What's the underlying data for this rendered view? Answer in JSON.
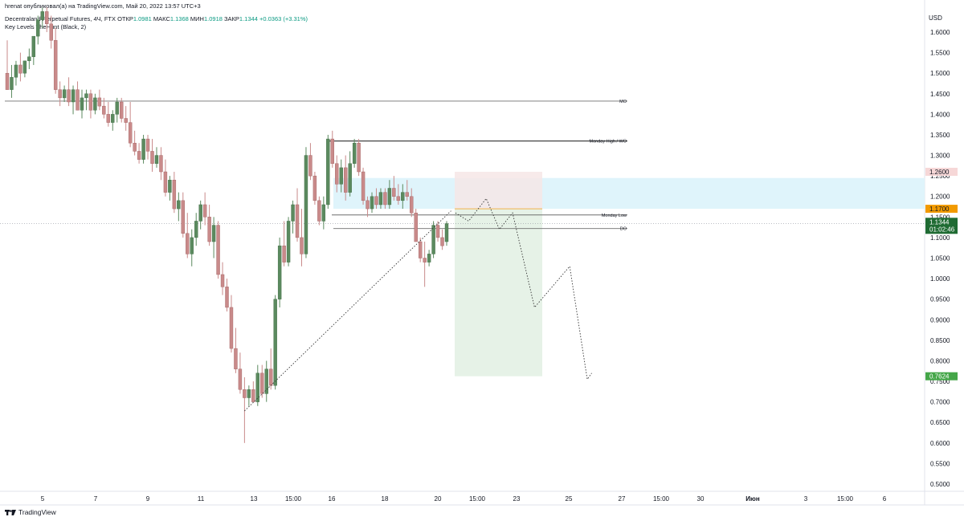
{
  "header": {
    "publisher_line": "hrenat опубликовал(а) на TradingView.com, Май 20, 2022 13:57 UTC+3",
    "symbol_line": "Decentraland Perpetual Futures, 4Ч, FTX",
    "ohlc": [
      {
        "key": "ОТКР",
        "value": "1.0981"
      },
      {
        "key": "МАКС",
        "value": "1.1368"
      },
      {
        "key": "МИН",
        "value": "1.0918"
      },
      {
        "key": "ЗАКР",
        "value": "1.1344"
      }
    ],
    "change": "+0.0363 (+3.31%)",
    "indicator": "Key Levels TheHunt (Black, 2)"
  },
  "footer": {
    "brand": "TradingView"
  },
  "colors": {
    "up": "#5b8a5f",
    "down": "#c98a8a",
    "level": "#6f6f6f",
    "zone": "#dff4fb",
    "stop": "#f6e6e6",
    "target": "#e6f2e7",
    "price_tag": "#1f6b33",
    "resistance_tag": "#f6d7d7",
    "entry_tag": "#f29a00",
    "target_tag": "#44a648"
  },
  "chart_data": {
    "type": "candlestick",
    "currency": "USD",
    "ylim": [
      0.48,
      1.65
    ],
    "y_ticks": [
      "0.5000",
      "0.5500",
      "0.6000",
      "0.6500",
      "0.7000",
      "0.7500",
      "0.8000",
      "0.8500",
      "0.9000",
      "0.9500",
      "1.0000",
      "1.0500",
      "1.1000",
      "1.1500",
      "1.2000",
      "1.2500",
      "1.3000",
      "1.3500",
      "1.4000",
      "1.4500",
      "1.5000",
      "1.5500",
      "1.6000"
    ],
    "x_ticks": [
      "5",
      "7",
      "9",
      "11",
      "13",
      "15:00",
      "16",
      "18",
      "20",
      "15:00",
      "23",
      "25",
      "27",
      "15:00",
      "30",
      "Июн",
      "3",
      "15:00",
      "6"
    ],
    "candles": [
      [
        1.5,
        1.58,
        1.46,
        1.46
      ],
      [
        1.46,
        1.52,
        1.44,
        1.49
      ],
      [
        1.49,
        1.53,
        1.47,
        1.52
      ],
      [
        1.52,
        1.55,
        1.48,
        1.5
      ],
      [
        1.5,
        1.53,
        1.49,
        1.53
      ],
      [
        1.53,
        1.56,
        1.51,
        1.54
      ],
      [
        1.54,
        1.58,
        1.52,
        1.59
      ],
      [
        1.59,
        1.64,
        1.57,
        1.63
      ],
      [
        1.63,
        1.66,
        1.61,
        1.65
      ],
      [
        1.65,
        1.66,
        1.6,
        1.62
      ],
      [
        1.62,
        1.64,
        1.56,
        1.58
      ],
      [
        1.58,
        1.61,
        1.45,
        1.46
      ],
      [
        1.46,
        1.48,
        1.42,
        1.44
      ],
      [
        1.44,
        1.47,
        1.43,
        1.46
      ],
      [
        1.46,
        1.49,
        1.42,
        1.43
      ],
      [
        1.43,
        1.47,
        1.4,
        1.46
      ],
      [
        1.46,
        1.48,
        1.41,
        1.41
      ],
      [
        1.41,
        1.46,
        1.39,
        1.44
      ],
      [
        1.44,
        1.46,
        1.41,
        1.45
      ],
      [
        1.45,
        1.46,
        1.39,
        1.41
      ],
      [
        1.41,
        1.45,
        1.4,
        1.44
      ],
      [
        1.44,
        1.46,
        1.41,
        1.42
      ],
      [
        1.42,
        1.44,
        1.39,
        1.4
      ],
      [
        1.4,
        1.43,
        1.37,
        1.38
      ],
      [
        1.38,
        1.41,
        1.36,
        1.4
      ],
      [
        1.4,
        1.44,
        1.38,
        1.43
      ],
      [
        1.43,
        1.44,
        1.38,
        1.39
      ],
      [
        1.39,
        1.42,
        1.36,
        1.38
      ],
      [
        1.38,
        1.43,
        1.32,
        1.33
      ],
      [
        1.33,
        1.36,
        1.3,
        1.31
      ],
      [
        1.31,
        1.33,
        1.28,
        1.29
      ],
      [
        1.29,
        1.35,
        1.28,
        1.34
      ],
      [
        1.34,
        1.35,
        1.29,
        1.31
      ],
      [
        1.31,
        1.34,
        1.26,
        1.28
      ],
      [
        1.28,
        1.32,
        1.27,
        1.3
      ],
      [
        1.3,
        1.32,
        1.24,
        1.26
      ],
      [
        1.26,
        1.29,
        1.2,
        1.21
      ],
      [
        1.21,
        1.25,
        1.19,
        1.24
      ],
      [
        1.24,
        1.26,
        1.16,
        1.17
      ],
      [
        1.17,
        1.21,
        1.14,
        1.19
      ],
      [
        1.19,
        1.21,
        1.1,
        1.11
      ],
      [
        1.11,
        1.16,
        1.05,
        1.06
      ],
      [
        1.06,
        1.12,
        1.03,
        1.1
      ],
      [
        1.1,
        1.16,
        1.08,
        1.14
      ],
      [
        1.14,
        1.19,
        1.12,
        1.18
      ],
      [
        1.18,
        1.21,
        1.13,
        1.15
      ],
      [
        1.15,
        1.18,
        1.08,
        1.09
      ],
      [
        1.09,
        1.15,
        1.05,
        1.13
      ],
      [
        1.13,
        1.14,
        1.0,
        1.01
      ],
      [
        1.01,
        1.04,
        0.96,
        0.98
      ],
      [
        0.98,
        1.0,
        0.92,
        0.93
      ],
      [
        0.93,
        0.96,
        0.82,
        0.83
      ],
      [
        0.83,
        0.88,
        0.77,
        0.78
      ],
      [
        0.78,
        0.82,
        0.72,
        0.73
      ],
      [
        0.73,
        0.76,
        0.6,
        0.71
      ],
      [
        0.71,
        0.74,
        0.69,
        0.73
      ],
      [
        0.73,
        0.75,
        0.7,
        0.7
      ],
      [
        0.7,
        0.79,
        0.69,
        0.77
      ],
      [
        0.77,
        0.79,
        0.71,
        0.72
      ],
      [
        0.72,
        0.8,
        0.7,
        0.78
      ],
      [
        0.78,
        0.83,
        0.73,
        0.74
      ],
      [
        0.74,
        0.96,
        0.73,
        0.95
      ],
      [
        0.95,
        1.1,
        0.93,
        1.08
      ],
      [
        1.08,
        1.14,
        1.03,
        1.04
      ],
      [
        1.04,
        1.15,
        1.03,
        1.14
      ],
      [
        1.14,
        1.19,
        1.11,
        1.18
      ],
      [
        1.18,
        1.22,
        1.09,
        1.1
      ],
      [
        1.1,
        1.17,
        1.03,
        1.06
      ],
      [
        1.06,
        1.32,
        1.05,
        1.3
      ],
      [
        1.3,
        1.33,
        1.24,
        1.25
      ],
      [
        1.25,
        1.26,
        1.18,
        1.19
      ],
      [
        1.19,
        1.2,
        1.13,
        1.14
      ],
      [
        1.14,
        1.2,
        1.12,
        1.18
      ],
      [
        1.18,
        1.35,
        1.17,
        1.34
      ],
      [
        1.34,
        1.36,
        1.27,
        1.28
      ],
      [
        1.28,
        1.3,
        1.21,
        1.23
      ],
      [
        1.23,
        1.29,
        1.21,
        1.27
      ],
      [
        1.27,
        1.3,
        1.19,
        1.21
      ],
      [
        1.21,
        1.31,
        1.2,
        1.28
      ],
      [
        1.28,
        1.34,
        1.27,
        1.33
      ],
      [
        1.33,
        1.34,
        1.25,
        1.26
      ],
      [
        1.26,
        1.27,
        1.18,
        1.19
      ],
      [
        1.19,
        1.2,
        1.15,
        1.17
      ],
      [
        1.17,
        1.21,
        1.16,
        1.2
      ],
      [
        1.2,
        1.22,
        1.17,
        1.18
      ],
      [
        1.18,
        1.22,
        1.17,
        1.21
      ],
      [
        1.21,
        1.22,
        1.17,
        1.18
      ],
      [
        1.18,
        1.24,
        1.17,
        1.22
      ],
      [
        1.22,
        1.25,
        1.19,
        1.2
      ],
      [
        1.2,
        1.23,
        1.18,
        1.19
      ],
      [
        1.19,
        1.23,
        1.17,
        1.21
      ],
      [
        1.21,
        1.24,
        1.19,
        1.2
      ],
      [
        1.2,
        1.22,
        1.15,
        1.16
      ],
      [
        1.16,
        1.17,
        1.09,
        1.09
      ],
      [
        1.09,
        1.1,
        1.04,
        1.05
      ],
      [
        1.05,
        1.09,
        0.98,
        1.04
      ],
      [
        1.04,
        1.07,
        1.03,
        1.06
      ],
      [
        1.06,
        1.14,
        1.05,
        1.13
      ],
      [
        1.13,
        1.14,
        1.09,
        1.1
      ],
      [
        1.1,
        1.12,
        1.07,
        1.08
      ],
      [
        1.09,
        1.14,
        1.08,
        1.134
      ]
    ],
    "levels": [
      {
        "label": "MO",
        "value": 1.432
      },
      {
        "label": "Monday High / WO",
        "value": 1.335
      },
      {
        "label": "Monday Low",
        "value": 1.155
      },
      {
        "label": "DO",
        "value": 1.122
      }
    ],
    "price_tags": [
      {
        "text": "1.2600",
        "value": 1.26,
        "role": "stop"
      },
      {
        "text": "1.1700",
        "value": 1.17,
        "role": "entry"
      },
      {
        "text": "1.1344",
        "value": 1.1344,
        "role": "current",
        "countdown": "01:02:46"
      },
      {
        "text": "0.7624",
        "value": 0.7624,
        "role": "target"
      }
    ],
    "short_position": {
      "entry": 1.17,
      "stop": 1.26,
      "target": 0.7624
    },
    "resistance_zone": [
      1.17,
      1.245
    ],
    "trendline": [
      [
        0.678,
        54
      ],
      [
        1.165,
        101
      ]
    ],
    "projection_path": [
      [
        1.16,
        102
      ],
      [
        1.14,
        105
      ],
      [
        1.195,
        109
      ],
      [
        1.12,
        112
      ],
      [
        1.16,
        115
      ],
      [
        0.93,
        120
      ],
      [
        1.03,
        128
      ],
      [
        0.755,
        132
      ],
      [
        0.77,
        133
      ]
    ]
  }
}
